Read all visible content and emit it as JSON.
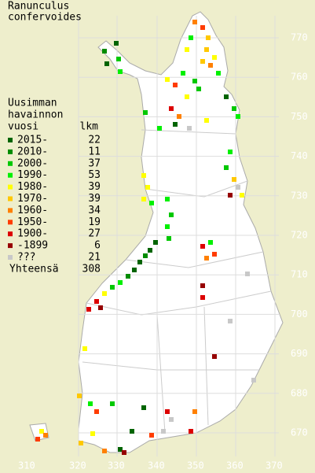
{
  "title": [
    "Ranunculus",
    "confervoides"
  ],
  "legend": {
    "header": [
      "Uusimman",
      "havainnon",
      "vuosi"
    ],
    "count_header": "lkm",
    "rows": [
      {
        "label": "2015-",
        "count": 22,
        "color": "#006400"
      },
      {
        "label": "2010-",
        "count": 11,
        "color": "#008c00"
      },
      {
        "label": "2000-",
        "count": 37,
        "color": "#00c800"
      },
      {
        "label": "1990-",
        "count": 53,
        "color": "#00f000"
      },
      {
        "label": "1980-",
        "count": 39,
        "color": "#ffff00"
      },
      {
        "label": "1970-",
        "count": 39,
        "color": "#ffc800"
      },
      {
        "label": "1960-",
        "count": 34,
        "color": "#ff8000"
      },
      {
        "label": "1950-",
        "count": 19,
        "color": "#ff3c00"
      },
      {
        "label": "1900-",
        "count": 27,
        "color": "#dc0000"
      },
      {
        "label": "-1899",
        "count": 6,
        "color": "#960000"
      },
      {
        "label": "???",
        "count": 21,
        "color": "#c8c8c8"
      }
    ],
    "total_label": "Yhteensä",
    "total": 308
  },
  "y_labels": [
    770,
    760,
    750,
    740,
    730,
    720,
    710,
    700,
    690,
    680,
    670
  ],
  "x_labels": [
    310,
    320,
    330,
    340,
    350,
    360,
    370
  ]
}
